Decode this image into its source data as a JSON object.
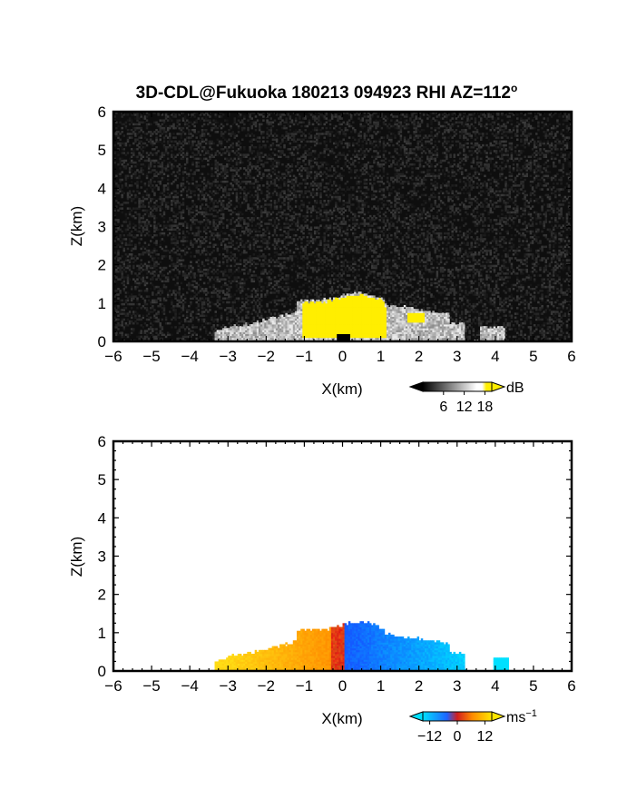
{
  "figure": {
    "title_main": "3D-CDL@Fukuoka 180213 094923 RHI AZ=112",
    "title_sup": "o"
  },
  "chart_data": [
    {
      "type": "heatmap",
      "panel": "top",
      "variable": "SNR",
      "xlabel": "X(km)",
      "ylabel": "Z(km)",
      "xlim": [
        -6,
        6
      ],
      "ylim": [
        0,
        6
      ],
      "x_ticks": [
        "−6",
        "−5",
        "−4",
        "−3",
        "−2",
        "−1",
        "0",
        "1",
        "2",
        "3",
        "4",
        "5",
        "6"
      ],
      "y_ticks": [
        "0",
        "1",
        "2",
        "3",
        "4",
        "5",
        "6"
      ],
      "background": "noise",
      "colorbar": {
        "unit": "dB",
        "ticks": [
          "6",
          "12",
          "18"
        ],
        "tick_values": [
          6,
          12,
          18
        ],
        "range": [
          0,
          20
        ],
        "colors": [
          "#000000",
          "#ffffff",
          "#ffee00"
        ]
      },
      "regions": [
        {
          "desc": "echo",
          "x": [
            -3.3,
            4.3
          ],
          "top_km": 1.35,
          "value_max": 16
        },
        {
          "desc": "strong echo",
          "x": [
            -1.1,
            1.1
          ],
          "top_km": 1.1,
          "value": 20
        },
        {
          "desc": "strong echo",
          "x": [
            1.6,
            2.1
          ],
          "top_km": 0.75,
          "value": 20
        },
        {
          "desc": "ground clutter",
          "x": [
            -0.2,
            0.2
          ],
          "top_km": 0.2,
          "value": 0
        }
      ]
    },
    {
      "type": "heatmap",
      "panel": "bottom",
      "variable": "Doppler velocity",
      "xlabel": "X(km)",
      "ylabel": "Z(km)",
      "xlim": [
        -6,
        6
      ],
      "ylim": [
        0,
        6
      ],
      "x_ticks": [
        "−6",
        "−5",
        "−4",
        "−3",
        "−2",
        "−1",
        "0",
        "1",
        "2",
        "3",
        "4",
        "5",
        "6"
      ],
      "y_ticks": [
        "0",
        "1",
        "2",
        "3",
        "4",
        "5",
        "6"
      ],
      "background": "#ffffff",
      "colorbar": {
        "unit": "ms",
        "unit_sup": "−1",
        "ticks": [
          "−12",
          "0",
          "12"
        ],
        "tick_values": [
          -12,
          0,
          12
        ],
        "range": [
          -15,
          15
        ],
        "colors": [
          "#00e0ff",
          "#1e64ff",
          "#d21e1e",
          "#ff8c00",
          "#ffe600"
        ]
      },
      "regions": [
        {
          "desc": "positive velocity (approaching side)",
          "x": [
            -3.3,
            0.0
          ],
          "top_km": 1.2,
          "value_range": [
            6,
            14
          ]
        },
        {
          "desc": "negative velocity (receding side)",
          "x": [
            0.0,
            4.3
          ],
          "top_km": 1.35,
          "value_range": [
            -14,
            -6
          ]
        }
      ]
    }
  ]
}
